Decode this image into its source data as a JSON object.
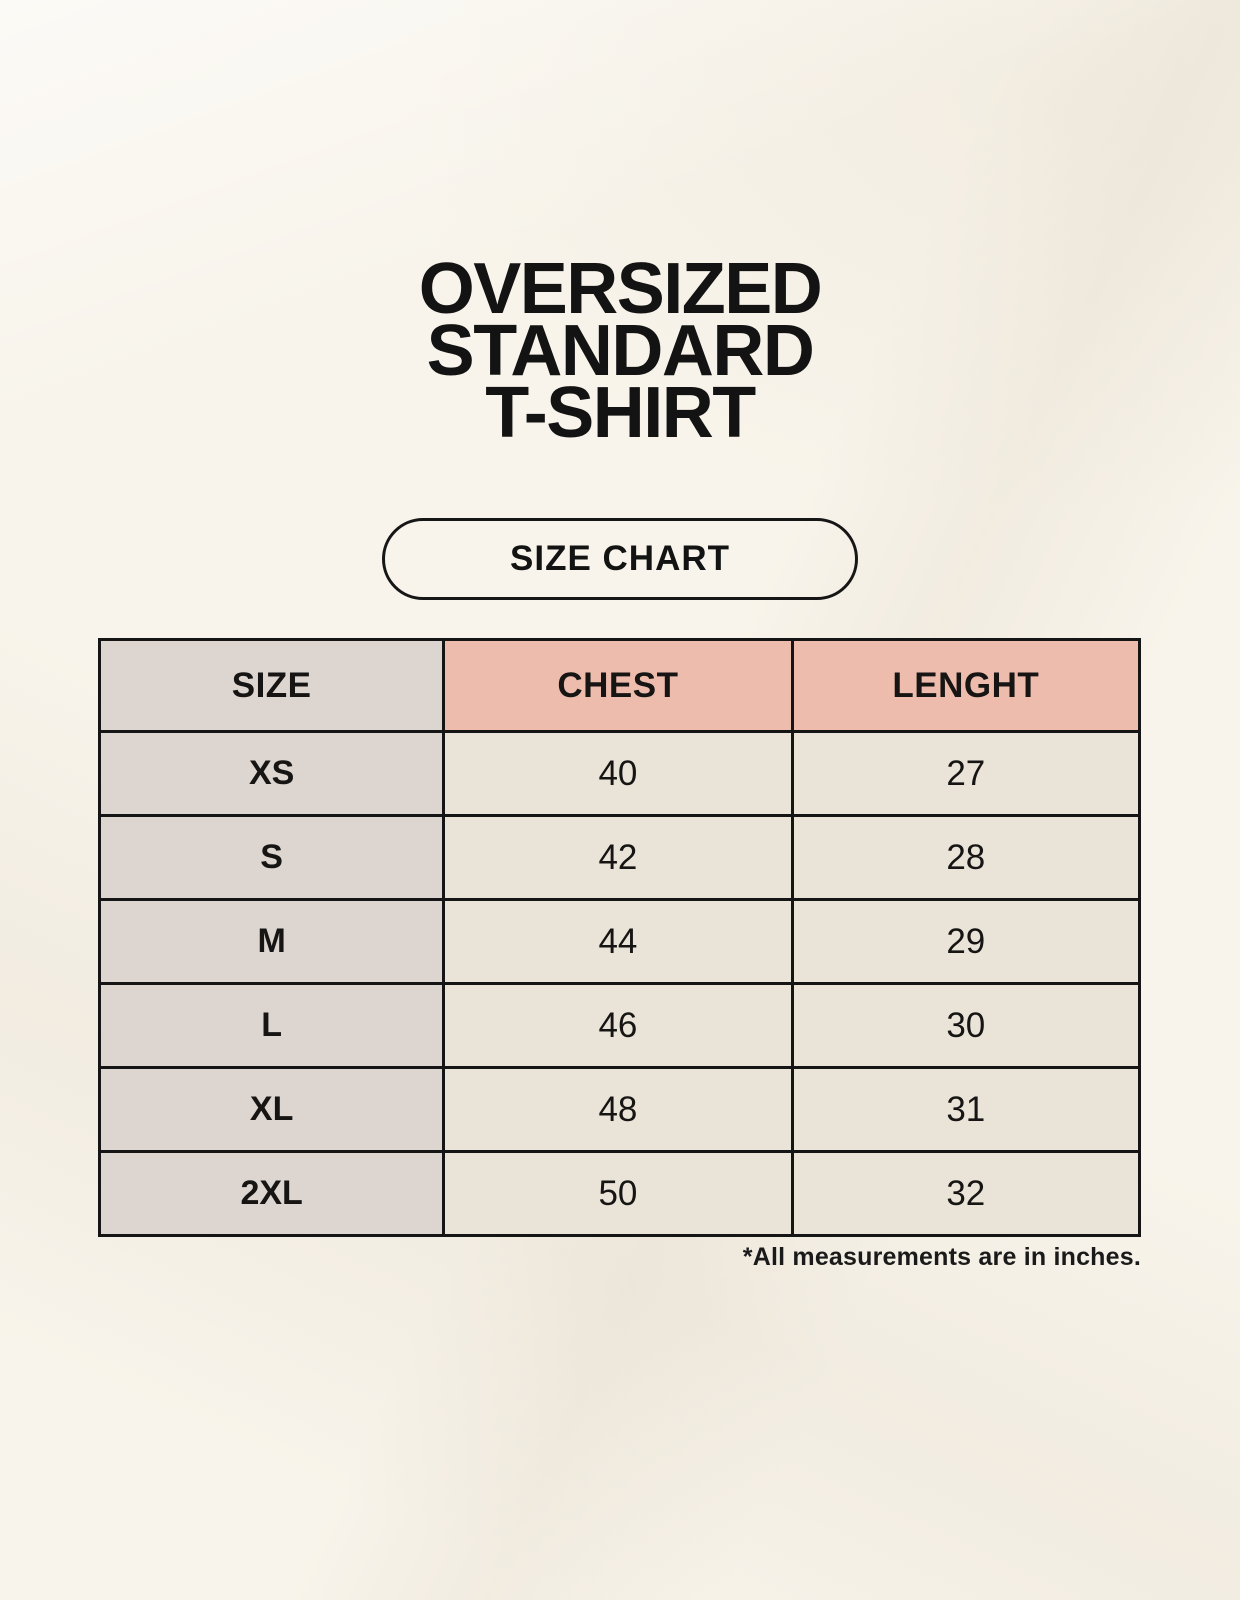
{
  "page": {
    "title_lines": [
      "OVERSIZED",
      "STANDARD",
      "T-SHIRT"
    ],
    "button_label": "SIZE CHART",
    "footnote": "*All measurements are in inches."
  },
  "colors": {
    "page_background": "#f8f4eb",
    "size_column_bg": "#ddd5cf",
    "accent_header_bg": "#edbcac",
    "data_cell_bg": "#eae3d7",
    "border": "#151515",
    "text": "#131313"
  },
  "chart_data": {
    "type": "table",
    "title": "OVERSIZED STANDARD T-SHIRT",
    "subtitle": "SIZE CHART",
    "note": "*All measurements are in inches.",
    "columns": [
      "SIZE",
      "CHEST",
      "LENGHT"
    ],
    "rows": [
      {
        "size": "XS",
        "chest": "40",
        "length": "27"
      },
      {
        "size": "S",
        "chest": "42",
        "length": "28"
      },
      {
        "size": "M",
        "chest": "44",
        "length": "29"
      },
      {
        "size": "L",
        "chest": "46",
        "length": "30"
      },
      {
        "size": "XL",
        "chest": "48",
        "length": "31"
      },
      {
        "size": "2XL",
        "chest": "50",
        "length": "32"
      }
    ]
  }
}
